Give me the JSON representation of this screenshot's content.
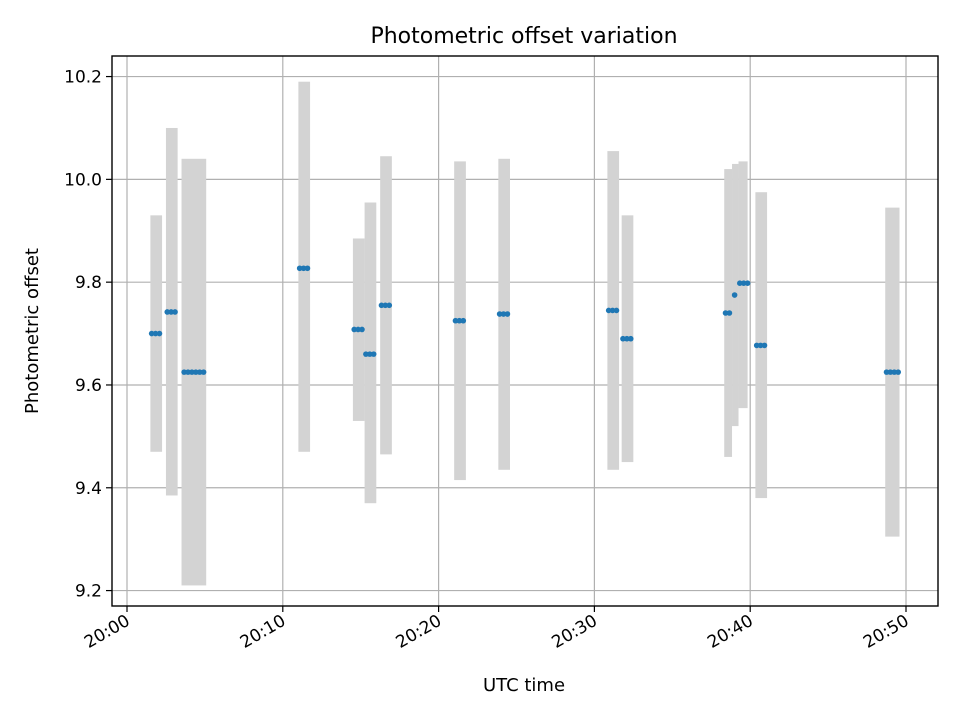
{
  "chart_data": {
    "type": "scatter",
    "title": "Photometric offset variation",
    "xlabel": "UTC time",
    "ylabel": "Photometric offset",
    "x_ticks": [
      "20:00",
      "20:10",
      "20:20",
      "20:30",
      "20:40",
      "20:50"
    ],
    "y_ticks": [
      "9.2",
      "9.4",
      "9.6",
      "9.8",
      "10.0",
      "10.2"
    ],
    "xlim": [
      "20:00:00",
      "20:52:00"
    ],
    "ylim": [
      9.17,
      10.24
    ],
    "grid": true,
    "colors": {
      "points": "#1f77b4",
      "error_bars": "#d3d3d3"
    },
    "error_bars": [
      {
        "x_start": "20:01:30",
        "x_end": "20:02:15",
        "low": 9.47,
        "high": 9.93
      },
      {
        "x_start": "20:02:30",
        "x_end": "20:03:15",
        "low": 9.385,
        "high": 10.1
      },
      {
        "x_start": "20:03:30",
        "x_end": "20:05:05",
        "low": 9.21,
        "high": 10.04
      },
      {
        "x_start": "20:11:00",
        "x_end": "20:11:45",
        "low": 9.47,
        "high": 10.19
      },
      {
        "x_start": "20:14:30",
        "x_end": "20:15:15",
        "low": 9.53,
        "high": 9.885
      },
      {
        "x_start": "20:15:15",
        "x_end": "20:16:00",
        "low": 9.37,
        "high": 9.955
      },
      {
        "x_start": "20:16:15",
        "x_end": "20:17:00",
        "low": 9.465,
        "high": 10.045
      },
      {
        "x_start": "20:21:00",
        "x_end": "20:21:45",
        "low": 9.415,
        "high": 10.035
      },
      {
        "x_start": "20:23:50",
        "x_end": "20:24:35",
        "low": 9.435,
        "high": 10.04
      },
      {
        "x_start": "20:30:50",
        "x_end": "20:31:35",
        "low": 9.435,
        "high": 10.055
      },
      {
        "x_start": "20:31:45",
        "x_end": "20:32:30",
        "low": 9.45,
        "high": 9.93
      },
      {
        "x_start": "20:38:20",
        "x_end": "20:38:50",
        "low": 9.46,
        "high": 10.02
      },
      {
        "x_start": "20:38:50",
        "x_end": "20:39:15",
        "low": 9.52,
        "high": 10.03
      },
      {
        "x_start": "20:39:15",
        "x_end": "20:39:50",
        "low": 9.555,
        "high": 10.035
      },
      {
        "x_start": "20:40:20",
        "x_end": "20:41:05",
        "low": 9.38,
        "high": 9.975
      },
      {
        "x_start": "20:48:40",
        "x_end": "20:49:35",
        "low": 9.305,
        "high": 9.945
      }
    ],
    "points": [
      {
        "x": "20:01:35",
        "y": 9.7
      },
      {
        "x": "20:01:50",
        "y": 9.7
      },
      {
        "x": "20:02:05",
        "y": 9.7
      },
      {
        "x": "20:02:35",
        "y": 9.742
      },
      {
        "x": "20:02:50",
        "y": 9.742
      },
      {
        "x": "20:03:05",
        "y": 9.742
      },
      {
        "x": "20:03:40",
        "y": 9.625
      },
      {
        "x": "20:03:55",
        "y": 9.625
      },
      {
        "x": "20:04:10",
        "y": 9.625
      },
      {
        "x": "20:04:25",
        "y": 9.625
      },
      {
        "x": "20:04:40",
        "y": 9.625
      },
      {
        "x": "20:04:55",
        "y": 9.625
      },
      {
        "x": "20:11:05",
        "y": 9.827
      },
      {
        "x": "20:11:20",
        "y": 9.827
      },
      {
        "x": "20:11:35",
        "y": 9.827
      },
      {
        "x": "20:14:35",
        "y": 9.708
      },
      {
        "x": "20:14:50",
        "y": 9.708
      },
      {
        "x": "20:15:05",
        "y": 9.708
      },
      {
        "x": "20:15:20",
        "y": 9.66
      },
      {
        "x": "20:15:35",
        "y": 9.66
      },
      {
        "x": "20:15:50",
        "y": 9.66
      },
      {
        "x": "20:16:20",
        "y": 9.755
      },
      {
        "x": "20:16:35",
        "y": 9.755
      },
      {
        "x": "20:16:50",
        "y": 9.755
      },
      {
        "x": "20:21:05",
        "y": 9.725
      },
      {
        "x": "20:21:20",
        "y": 9.725
      },
      {
        "x": "20:21:35",
        "y": 9.725
      },
      {
        "x": "20:23:55",
        "y": 9.738
      },
      {
        "x": "20:24:10",
        "y": 9.738
      },
      {
        "x": "20:24:25",
        "y": 9.738
      },
      {
        "x": "20:30:55",
        "y": 9.745
      },
      {
        "x": "20:31:10",
        "y": 9.745
      },
      {
        "x": "20:31:25",
        "y": 9.745
      },
      {
        "x": "20:31:50",
        "y": 9.69
      },
      {
        "x": "20:32:05",
        "y": 9.69
      },
      {
        "x": "20:32:20",
        "y": 9.69
      },
      {
        "x": "20:38:25",
        "y": 9.74
      },
      {
        "x": "20:38:40",
        "y": 9.74
      },
      {
        "x": "20:39:00",
        "y": 9.775
      },
      {
        "x": "20:39:20",
        "y": 9.798
      },
      {
        "x": "20:39:35",
        "y": 9.798
      },
      {
        "x": "20:39:50",
        "y": 9.798
      },
      {
        "x": "20:40:25",
        "y": 9.677
      },
      {
        "x": "20:40:40",
        "y": 9.677
      },
      {
        "x": "20:40:55",
        "y": 9.677
      },
      {
        "x": "20:48:45",
        "y": 9.625
      },
      {
        "x": "20:49:00",
        "y": 9.625
      },
      {
        "x": "20:49:15",
        "y": 9.625
      },
      {
        "x": "20:49:30",
        "y": 9.625
      }
    ]
  }
}
